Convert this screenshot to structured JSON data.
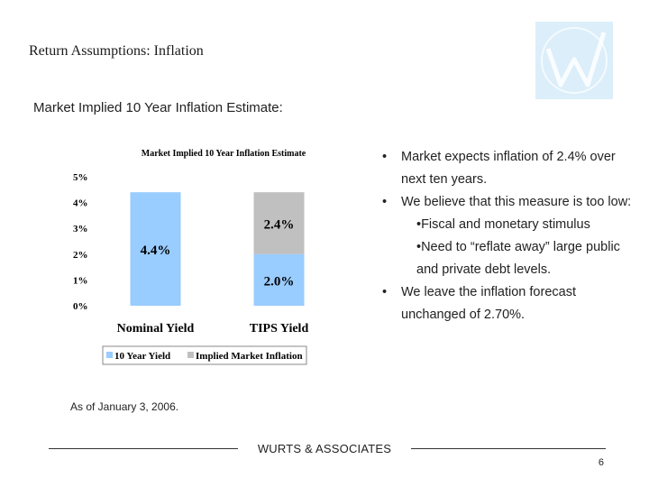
{
  "slide": {
    "title": "Return Assumptions: Inflation",
    "subtitle": "Market Implied 10 Year Inflation Estimate:",
    "as_of": "As of January 3, 2006.",
    "footer": "WURTS & ASSOCIATES",
    "page_number": "6",
    "logo_letter": "W"
  },
  "bullets": [
    {
      "level": 1,
      "text": "Market expects inflation of 2.4% over next ten years."
    },
    {
      "level": 1,
      "text": "We believe that this measure is too low:"
    },
    {
      "level": 2,
      "text": "•Fiscal and monetary stimulus"
    },
    {
      "level": 2,
      "text": "•Need to “reflate away” large public and private debt levels."
    },
    {
      "level": 1,
      "text": "We leave the inflation forecast unchanged of 2.70%."
    }
  ],
  "chart_data": {
    "type": "bar",
    "stacked": true,
    "title": "Market Implied 10 Year Inflation Estimate",
    "categories": [
      "Nominal Yield",
      "TIPS Yield"
    ],
    "series": [
      {
        "name": "10 Year Yield",
        "color": "#99ccff",
        "values": [
          4.4,
          2.0
        ],
        "labels": [
          "4.4%",
          "2.0%"
        ]
      },
      {
        "name": "Implied Market Inflation",
        "color": "#c0c0c0",
        "values": [
          0,
          2.4
        ],
        "labels": [
          "",
          "2.4%"
        ]
      }
    ],
    "y_ticks": [
      "0%",
      "1%",
      "2%",
      "3%",
      "4%",
      "5%"
    ],
    "ylim": [
      0,
      5
    ],
    "grid": false,
    "legend_position": "bottom"
  }
}
